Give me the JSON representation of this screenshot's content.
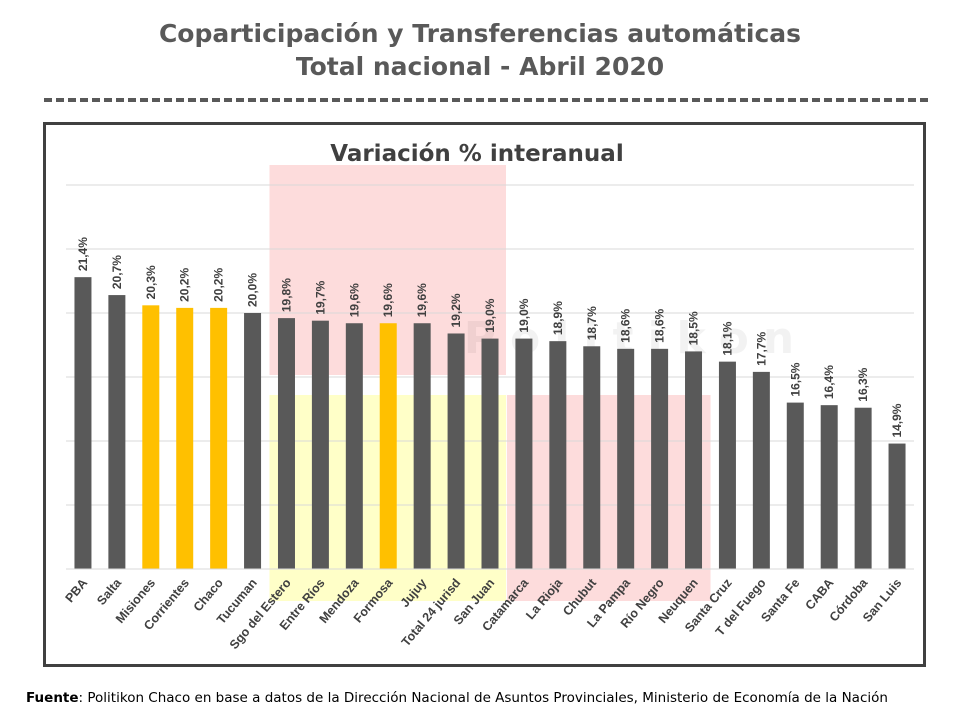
{
  "header": {
    "title_line1": "Coparticipación y Transferencias automáticas",
    "title_line2": "Total nacional - Abril 2020"
  },
  "footer": {
    "label": "Fuente",
    "text": ": Politikon Chaco en base a datos de la Dirección Nacional de Asuntos Provinciales, Ministerio de Economía de la Nación"
  },
  "watermark": "Politikon",
  "colors": {
    "default_bar": "#595959",
    "highlight_bar": "#FFC000",
    "region_red": "#FDDCDC",
    "region_yellow": "#FFFFC8",
    "grid": "#D9D9D9",
    "text": "#404040"
  },
  "chart_data": {
    "type": "bar",
    "title": "Variación % interanual",
    "xlabel": "",
    "ylabel": "",
    "ylim": [
      10,
      25
    ],
    "grid": true,
    "categories": [
      "PBA",
      "Salta",
      "Misiones",
      "Corrientes",
      "Chaco",
      "Tucuman",
      "Sgo del Estero",
      "Entre Ríos",
      "Mendoza",
      "Formosa",
      "Jujuy",
      "Total 24 jurisd",
      "San Juan",
      "Catamarca",
      "La Rioja",
      "Chubut",
      "La Pampa",
      "Río Negro",
      "Neuquen",
      "Santa Cruz",
      "T del Fuego",
      "Santa Fe",
      "CABA",
      "Córdoba",
      "San Luis"
    ],
    "values": [
      21.4,
      20.7,
      20.3,
      20.2,
      20.2,
      20.0,
      19.8,
      19.7,
      19.6,
      19.6,
      19.6,
      19.2,
      19.0,
      19.0,
      18.9,
      18.7,
      18.6,
      18.6,
      18.5,
      18.1,
      17.7,
      16.5,
      16.4,
      16.3,
      14.9
    ],
    "value_labels": [
      "21,4%",
      "20,7%",
      "20,3%",
      "20,2%",
      "20,2%",
      "20,0%",
      "19,8%",
      "19,7%",
      "19,6%",
      "19,6%",
      "19,6%",
      "19,2%",
      "19,0%",
      "19,0%",
      "18,9%",
      "18,7%",
      "18,6%",
      "18,6%",
      "18,5%",
      "18,1%",
      "17,7%",
      "16,5%",
      "16,4%",
      "16,3%",
      "14,9%"
    ],
    "highlighted": [
      "Misiones",
      "Corrientes",
      "Chaco",
      "Formosa"
    ]
  }
}
